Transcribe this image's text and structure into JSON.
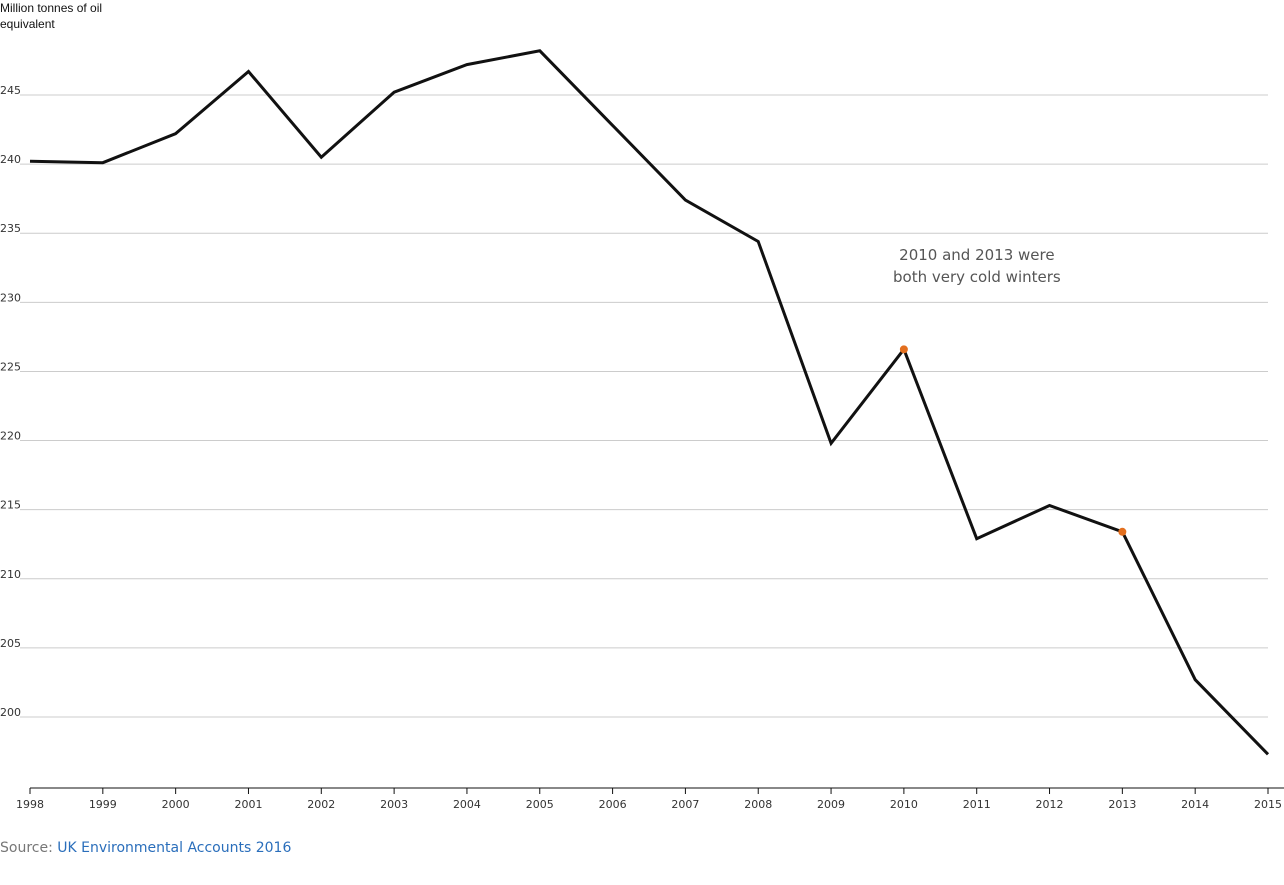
{
  "chart_data": {
    "type": "line",
    "title": "",
    "xlabel": "",
    "ylabel": "Million tonnes of oil equivalent",
    "x": [
      "1998",
      "1999",
      "2000",
      "2001",
      "2002",
      "2003",
      "2004",
      "2005",
      "2006",
      "2007",
      "2008",
      "2009",
      "2010",
      "2011",
      "2012",
      "2013",
      "2014",
      "2015"
    ],
    "series": [
      {
        "values": [
          240.2,
          240.1,
          242.2,
          246.7,
          240.5,
          245.2,
          247.2,
          248.2,
          242.8,
          237.4,
          234.4,
          219.8,
          226.6,
          212.9,
          215.3,
          213.4,
          202.7,
          197.3
        ]
      }
    ],
    "highlighted_points": [
      "2010",
      "2013"
    ],
    "highlight_color": "#e36f1e",
    "line_color": "#111111",
    "yticks": [
      200,
      205,
      210,
      215,
      220,
      225,
      230,
      235,
      240,
      245
    ],
    "ylim": [
      195,
      249
    ],
    "grid": true,
    "annotation": {
      "line1": "2010 and 2013 were",
      "line2": "both very cold winters"
    }
  },
  "source": {
    "prefix": "Source:",
    "link_text": "UK Environmental Accounts 2016",
    "link_color": "#2a6ebb"
  }
}
